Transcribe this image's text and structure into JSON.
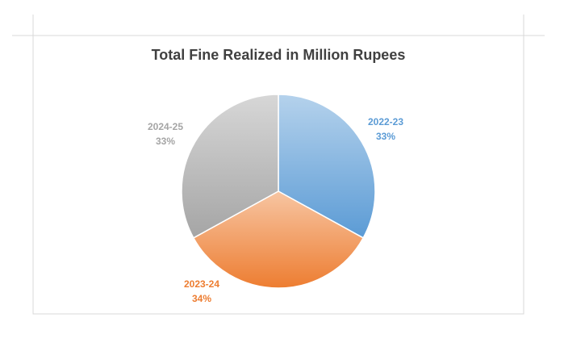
{
  "chart_data": {
    "type": "pie",
    "title": "Total Fine Realized in Million Rupees",
    "categories": [
      "2022-23",
      "2023-24",
      "2024-25"
    ],
    "values": [
      33,
      34,
      33
    ],
    "value_labels": [
      "33%",
      "34%",
      "33%"
    ],
    "colors": [
      "#5b9bd5",
      "#ed7d31",
      "#a5a5a5"
    ]
  }
}
